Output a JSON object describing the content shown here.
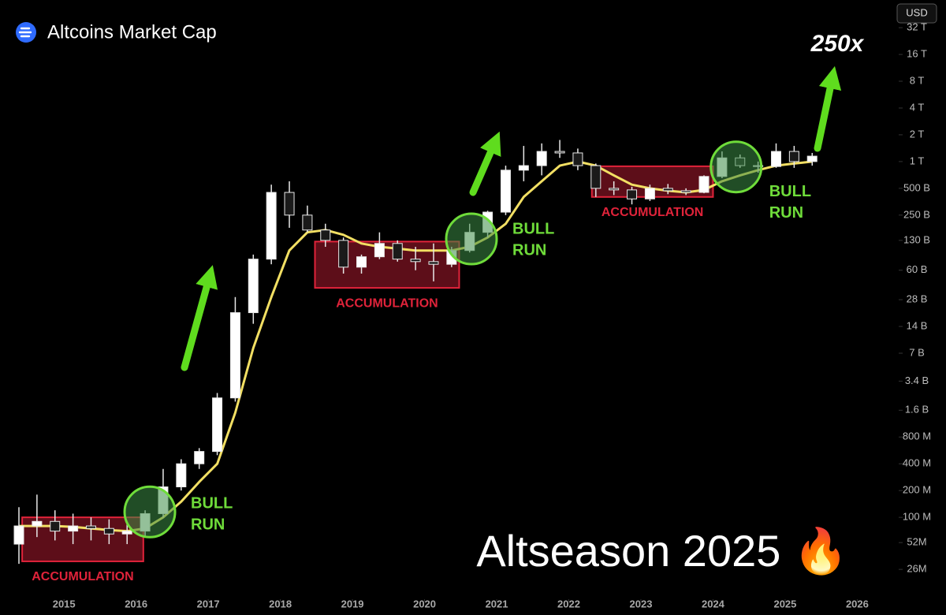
{
  "header": {
    "title": "Altcoins Market Cap",
    "currency": "USD"
  },
  "chart_data": {
    "type": "candlestick",
    "log_scale": true,
    "up_color": "#ffffff",
    "down_color": "#1a1a1a",
    "x": [
      2014.375,
      2014.625,
      2014.875,
      2015.125,
      2015.375,
      2015.625,
      2015.875,
      2016.125,
      2016.375,
      2016.625,
      2016.875,
      2017.125,
      2017.375,
      2017.625,
      2017.875,
      2018.125,
      2018.375,
      2018.625,
      2018.875,
      2019.125,
      2019.375,
      2019.625,
      2019.875,
      2020.125,
      2020.375,
      2020.625,
      2020.875,
      2021.125,
      2021.375,
      2021.625,
      2021.875,
      2022.125,
      2022.375,
      2022.625,
      2022.875,
      2023.125,
      2023.375,
      2023.625,
      2023.875,
      2024.125,
      2024.375,
      2024.625,
      2024.875,
      2025.125,
      2025.375
    ],
    "open": [
      50000000.0,
      80000000.0,
      90000000.0,
      70000000.0,
      80000000.0,
      75000000.0,
      65000000.0,
      70000000.0,
      110000000.0,
      220000000.0,
      400000000.0,
      550000000.0,
      2200000000.0,
      20000000000.0,
      80000000000.0,
      450000000000.0,
      250000000000.0,
      170000000000.0,
      130000000000.0,
      65000000000.0,
      85000000000.0,
      120000000000.0,
      80000000000.0,
      75000000000.0,
      70000000000.0,
      100000000000.0,
      160000000000.0,
      270000000000.0,
      800000000000.0,
      900000000000.0,
      1300000000000.0,
      1250000000000.0,
      900000000000.0,
      500000000000.0,
      480000000000.0,
      380000000000.0,
      500000000000.0,
      470000000000.0,
      450000000000.0,
      680000000000.0,
      1100000000000.0,
      900000000000.0,
      880000000000.0,
      1300000000000.0,
      1000000000000.0
    ],
    "high": [
      130000000.0,
      180000000.0,
      120000000.0,
      110000000.0,
      100000000.0,
      95000000.0,
      90000000.0,
      120000000.0,
      350000000.0,
      450000000.0,
      600000000.0,
      2500000000.0,
      30000000000.0,
      90000000000.0,
      550000000000.0,
      600000000000.0,
      320000000000.0,
      200000000000.0,
      140000000000.0,
      90000000000.0,
      160000000000.0,
      130000000000.0,
      110000000000.0,
      120000000000.0,
      110000000000.0,
      200000000000.0,
      280000000000.0,
      900000000000.0,
      1500000000000.0,
      1600000000000.0,
      1750000000000.0,
      1400000000000.0,
      950000000000.0,
      600000000000.0,
      520000000000.0,
      550000000000.0,
      560000000000.0,
      500000000000.0,
      700000000000.0,
      1300000000000.0,
      1200000000000.0,
      1000000000000.0,
      1600000000000.0,
      1500000000000.0,
      1250000000000.0
    ],
    "low": [
      30000000.0,
      60000000.0,
      55000000.0,
      50000000.0,
      55000000.0,
      50000000.0,
      50000000.0,
      60000000.0,
      100000000.0,
      200000000.0,
      350000000.0,
      500000000.0,
      2000000000.0,
      15000000000.0,
      70000000000.0,
      180000000000.0,
      160000000000.0,
      110000000000.0,
      55000000000.0,
      55000000000.0,
      80000000000.0,
      75000000000.0,
      60000000000.0,
      45000000000.0,
      65000000000.0,
      95000000000.0,
      140000000000.0,
      250000000000.0,
      600000000000.0,
      700000000000.0,
      1100000000000.0,
      800000000000.0,
      400000000000.0,
      420000000000.0,
      330000000000.0,
      360000000000.0,
      430000000000.0,
      420000000000.0,
      440000000000.0,
      650000000000.0,
      850000000000.0,
      750000000000.0,
      850000000000.0,
      850000000000.0,
      900000000000.0
    ],
    "close": [
      80000000.0,
      90000000.0,
      70000000.0,
      80000000.0,
      75000000.0,
      65000000.0,
      70000000.0,
      110000000.0,
      220000000.0,
      400000000.0,
      550000000.0,
      2200000000.0,
      20000000000.0,
      80000000000.0,
      450000000000.0,
      250000000000.0,
      170000000000.0,
      130000000000.0,
      65000000000.0,
      85000000000.0,
      120000000000.0,
      80000000000.0,
      75000000000.0,
      70000000000.0,
      100000000000.0,
      160000000000.0,
      270000000000.0,
      800000000000.0,
      900000000000.0,
      1300000000000.0,
      1250000000000.0,
      900000000000.0,
      500000000000.0,
      480000000000.0,
      380000000000.0,
      500000000000.0,
      470000000000.0,
      450000000000.0,
      680000000000.0,
      1100000000000.0,
      900000000000.0,
      880000000000.0,
      1300000000000.0,
      1000000000000.0,
      1150000000000.0
    ],
    "ma": {
      "color": "#f2df63",
      "values": [
        80000000.0,
        80000000.0,
        80000000.0,
        78000000.0,
        75000000.0,
        72000000.0,
        70000000.0,
        75000000.0,
        100000000.0,
        150000000.0,
        250000000.0,
        400000000.0,
        1500000000.0,
        8000000000.0,
        30000000000.0,
        100000000000.0,
        160000000000.0,
        170000000000.0,
        150000000000.0,
        120000000000.0,
        110000000000.0,
        105000000000.0,
        100000000000.0,
        100000000000.0,
        100000000000.0,
        110000000000.0,
        140000000000.0,
        200000000000.0,
        400000000000.0,
        600000000000.0,
        900000000000.0,
        1000000000000.0,
        900000000000.0,
        700000000000.0,
        550000000000.0,
        500000000000.0,
        470000000000.0,
        450000000000.0,
        480000000000.0,
        600000000000.0,
        700000000000.0,
        800000000000.0,
        900000000000.0,
        950000000000.0,
        1000000000000.0
      ]
    },
    "xlim": [
      2014.2,
      2026.4
    ],
    "xticks": [
      2015,
      2016,
      2017,
      2018,
      2019,
      2020,
      2021,
      2022,
      2023,
      2024,
      2025,
      2026
    ],
    "ylim": [
      12000000,
      37000000000000
    ],
    "yticks": [
      {
        "value": 26000000,
        "label": "26M"
      },
      {
        "value": 52000000,
        "label": "52M"
      },
      {
        "value": 100000000,
        "label": "100 M"
      },
      {
        "value": 200000000,
        "label": "200 M"
      },
      {
        "value": 400000000,
        "label": "400 M"
      },
      {
        "value": 800000000,
        "label": "800 M"
      },
      {
        "value": 1600000000,
        "label": "1.6 B"
      },
      {
        "value": 3400000000,
        "label": "3.4 B"
      },
      {
        "value": 7000000000,
        "label": "7 B"
      },
      {
        "value": 14000000000,
        "label": "14 B"
      },
      {
        "value": 28000000000,
        "label": "28 B"
      },
      {
        "value": 60000000000,
        "label": "60 B"
      },
      {
        "value": 130000000000,
        "label": "130 B"
      },
      {
        "value": 250000000000,
        "label": "250 B"
      },
      {
        "value": 500000000000,
        "label": "500 B"
      },
      {
        "value": 1000000000000,
        "label": "1 T"
      },
      {
        "value": 2000000000000,
        "label": "2 T"
      },
      {
        "value": 4000000000000,
        "label": "4 T"
      },
      {
        "value": 8000000000000,
        "label": "8 T"
      },
      {
        "value": 16000000000000,
        "label": "16 T"
      },
      {
        "value": 32000000000000,
        "label": "32 T"
      }
    ],
    "annotations": {
      "zones": [
        {
          "label": "ACCUMULATION",
          "x": [
            2014.42,
            2016.1
          ],
          "y": [
            32000000,
            100000000
          ]
        },
        {
          "label": "ACCUMULATION",
          "x": [
            2018.48,
            2020.48
          ],
          "y": [
            38000000000,
            126000000000
          ]
        },
        {
          "label": "ACCUMULATION",
          "x": [
            2022.32,
            2024.0
          ],
          "y": [
            400000000000,
            885000000000
          ]
        }
      ],
      "circles": [
        {
          "label_lines": [
            "BULL",
            "RUN"
          ],
          "x": 2016.19,
          "y": 115000000
        },
        {
          "label_lines": [
            "BULL",
            "RUN"
          ],
          "x": 2020.65,
          "y": 135000000000
        },
        {
          "label_lines": [
            "BULL",
            "RUN"
          ],
          "x": 2024.32,
          "y": 870000000000
        }
      ],
      "target": "250x",
      "headline": "Altseason 2025 🔥"
    }
  }
}
